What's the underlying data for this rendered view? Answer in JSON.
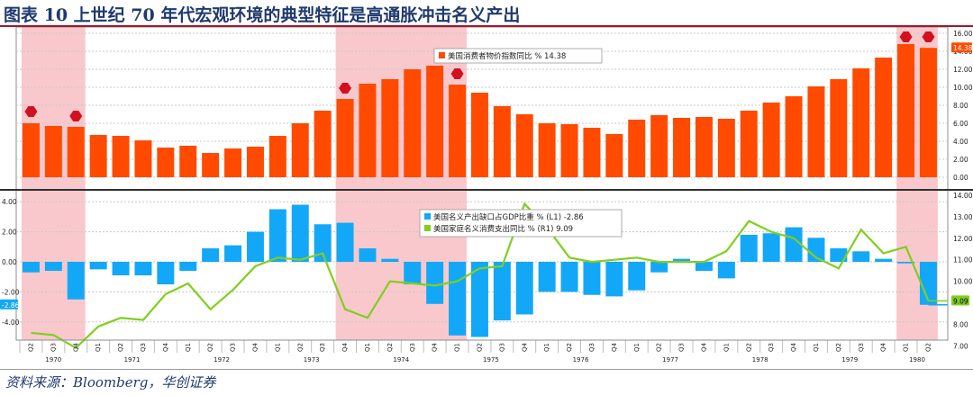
{
  "header": {
    "title": "图表 10 上世纪 70 年代宏观环境的典型特征是高通胀冲击名义产出"
  },
  "footer": {
    "source": "资料来源：Bloomberg，华创证券"
  },
  "colors": {
    "cpi_bar": "#ff4a00",
    "gap_bar": "#13a8f7",
    "consumption_line": "#7fcf1f",
    "recession_shade": "#f7b6bb",
    "marker": "#d3101e"
  },
  "chart_data": [
    {
      "type": "bar",
      "panel": "top",
      "categories": [
        "Q2 1970",
        "Q3 1970",
        "Q4 1970",
        "Q1 1971",
        "Q2 1971",
        "Q3 1971",
        "Q4 1971",
        "Q1 1972",
        "Q2 1972",
        "Q3 1972",
        "Q4 1972",
        "Q1 1973",
        "Q2 1973",
        "Q3 1973",
        "Q4 1973",
        "Q1 1974",
        "Q2 1974",
        "Q3 1974",
        "Q4 1974",
        "Q1 1975",
        "Q2 1975",
        "Q3 1975",
        "Q4 1975",
        "Q1 1976",
        "Q2 1976",
        "Q3 1976",
        "Q4 1976",
        "Q1 1977",
        "Q2 1977",
        "Q3 1977",
        "Q4 1977",
        "Q1 1978",
        "Q2 1978",
        "Q3 1978",
        "Q4 1978",
        "Q1 1979",
        "Q2 1979",
        "Q3 1979",
        "Q4 1979",
        "Q1 1980",
        "Q2 1980"
      ],
      "series": [
        {
          "name": "美国消费者物价指数同比 % 14.38",
          "values": [
            6.0,
            5.7,
            5.6,
            4.7,
            4.6,
            4.1,
            3.3,
            3.5,
            2.7,
            3.2,
            3.4,
            4.6,
            6.0,
            7.4,
            8.7,
            10.4,
            10.9,
            12.0,
            12.4,
            10.3,
            9.4,
            7.9,
            7.0,
            6.0,
            5.9,
            5.5,
            4.8,
            6.4,
            6.9,
            6.6,
            6.7,
            6.5,
            7.4,
            8.3,
            9.0,
            10.1,
            10.9,
            12.1,
            13.3,
            14.8,
            14.38
          ]
        }
      ],
      "last_value_label": "14.38",
      "yaxis_right": {
        "min": 0,
        "max": 16,
        "ticks": [
          "0.00",
          "2.00",
          "4.00",
          "6.00",
          "8.00",
          "10.00",
          "12.00",
          "14.00",
          "16.00"
        ]
      },
      "shaded_periods": [
        [
          "Q2 1970",
          "Q4 1970"
        ],
        [
          "Q4 1973",
          "Q1 1975"
        ],
        [
          "Q1 1980",
          "Q2 1980"
        ]
      ],
      "markers": [
        {
          "category": "Q2 1970",
          "value": 7.3
        },
        {
          "category": "Q4 1970",
          "value": 6.8
        },
        {
          "category": "Q4 1973",
          "value": 9.9
        },
        {
          "category": "Q1 1975",
          "value": 11.5
        },
        {
          "category": "Q1 1980",
          "value": 15.6
        },
        {
          "category": "Q2 1980",
          "value": 15.6
        }
      ],
      "legend_position": "top-center"
    },
    {
      "type": "bar+line",
      "panel": "bottom",
      "categories": [
        "Q2 1970",
        "Q3 1970",
        "Q4 1970",
        "Q1 1971",
        "Q2 1971",
        "Q3 1971",
        "Q4 1971",
        "Q1 1972",
        "Q2 1972",
        "Q3 1972",
        "Q4 1972",
        "Q1 1973",
        "Q2 1973",
        "Q3 1973",
        "Q4 1973",
        "Q1 1974",
        "Q2 1974",
        "Q3 1974",
        "Q4 1974",
        "Q1 1975",
        "Q2 1975",
        "Q3 1975",
        "Q4 1975",
        "Q1 1976",
        "Q2 1976",
        "Q3 1976",
        "Q4 1976",
        "Q1 1977",
        "Q2 1977",
        "Q3 1977",
        "Q4 1977",
        "Q1 1978",
        "Q2 1978",
        "Q3 1978",
        "Q4 1978",
        "Q1 1979",
        "Q2 1979",
        "Q3 1979",
        "Q4 1979",
        "Q1 1980",
        "Q2 1980"
      ],
      "series": [
        {
          "name": "美国名义产出缺口占GDP比重 % (L1) -2.86",
          "kind": "bar",
          "axis": "left",
          "values": [
            -0.7,
            -0.6,
            -2.5,
            -0.5,
            -0.9,
            -0.9,
            -1.5,
            -0.6,
            0.9,
            1.1,
            2.0,
            3.5,
            3.8,
            2.5,
            2.6,
            0.9,
            0.2,
            -1.5,
            -2.8,
            -4.9,
            -5.0,
            -3.9,
            -3.5,
            -2.0,
            -2.0,
            -2.2,
            -2.3,
            -1.9,
            -0.7,
            0.2,
            -0.6,
            -1.1,
            1.8,
            1.9,
            2.3,
            1.6,
            0.9,
            0.7,
            0.2,
            -0.1,
            -2.86
          ]
        },
        {
          "name": "美国家庭名义消费支出同比 % (R1) 9.09",
          "kind": "line",
          "axis": "right",
          "values": [
            7.6,
            7.5,
            6.9,
            7.9,
            8.3,
            8.2,
            9.4,
            9.9,
            8.7,
            9.6,
            10.7,
            11.1,
            11.0,
            11.3,
            8.7,
            8.3,
            10.0,
            9.9,
            9.8,
            10.0,
            10.6,
            10.7,
            13.6,
            12.5,
            11.1,
            10.9,
            11.0,
            11.1,
            10.9,
            10.9,
            10.9,
            11.4,
            12.8,
            12.3,
            12.0,
            11.1,
            10.6,
            12.4,
            11.3,
            11.6,
            9.09
          ]
        }
      ],
      "last_value_labels": {
        "left": "-2.86",
        "right": "9.09"
      },
      "yaxis_left": {
        "min": -6,
        "max": 5,
        "ticks": [
          "-4.00",
          "-2.00",
          "0.00",
          "2.00",
          "4.00"
        ]
      },
      "yaxis_right": {
        "min": 6.5,
        "max": 14.2,
        "ticks": [
          "7.00",
          "8.00",
          "9.00",
          "10.00",
          "11.00",
          "12.00",
          "13.00",
          "14.00"
        ]
      },
      "shaded_periods": [
        [
          "Q2 1970",
          "Q4 1970"
        ],
        [
          "Q4 1973",
          "Q1 1975"
        ],
        [
          "Q1 1980",
          "Q2 1980"
        ]
      ],
      "legend_position": "top-center"
    }
  ],
  "xaxis": {
    "quarter_labels": [
      "Q2",
      "Q3",
      "Q4",
      "Q1",
      "Q2",
      "Q3",
      "Q4",
      "Q1",
      "Q2",
      "Q3",
      "Q4",
      "Q1",
      "Q2",
      "Q3",
      "Q4",
      "Q1",
      "Q2",
      "Q3",
      "Q4",
      "Q1",
      "Q2",
      "Q3",
      "Q4",
      "Q1",
      "Q2",
      "Q3",
      "Q4",
      "Q1",
      "Q2",
      "Q3",
      "Q4",
      "Q1",
      "Q2",
      "Q3",
      "Q4",
      "Q1",
      "Q2",
      "Q3",
      "Q4",
      "Q1",
      "Q2"
    ],
    "years": [
      {
        "label": "1970",
        "from": 0,
        "to": 2
      },
      {
        "label": "1971",
        "from": 3,
        "to": 6
      },
      {
        "label": "1972",
        "from": 7,
        "to": 10
      },
      {
        "label": "1973",
        "from": 11,
        "to": 14
      },
      {
        "label": "1974",
        "from": 15,
        "to": 18
      },
      {
        "label": "1975",
        "from": 19,
        "to": 22
      },
      {
        "label": "1976",
        "from": 23,
        "to": 26
      },
      {
        "label": "1977",
        "from": 27,
        "to": 30
      },
      {
        "label": "1978",
        "from": 31,
        "to": 34
      },
      {
        "label": "1979",
        "from": 35,
        "to": 38
      },
      {
        "label": "1980",
        "from": 39,
        "to": 40
      }
    ]
  }
}
